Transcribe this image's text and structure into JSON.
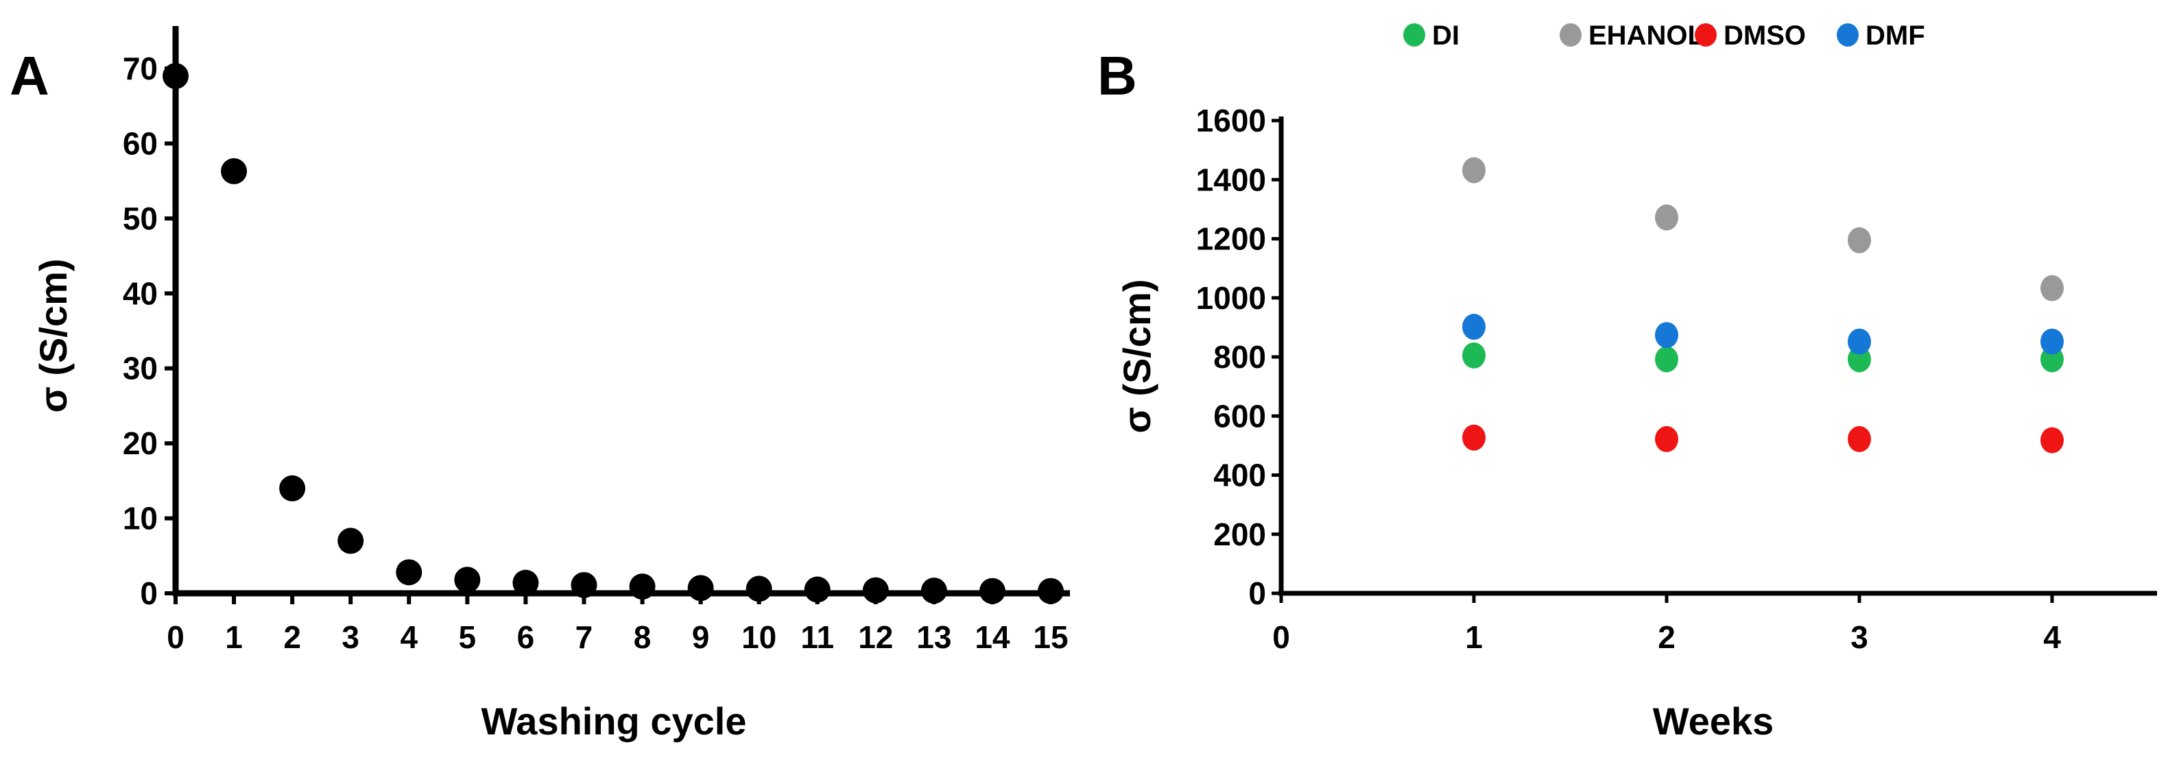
{
  "chart_data": [
    {
      "panel_label": "A",
      "type": "scatter",
      "xlabel": "Washing cycle",
      "ylabel": "σ (S/cm)",
      "xlim": [
        0,
        15
      ],
      "ylim": [
        0,
        70
      ],
      "xticks": [
        0,
        1,
        2,
        3,
        4,
        5,
        6,
        7,
        8,
        9,
        10,
        11,
        12,
        13,
        14,
        15
      ],
      "yticks": [
        0,
        10,
        20,
        30,
        40,
        50,
        60,
        70
      ],
      "grid": false,
      "series": [
        {
          "color": "#000000",
          "x": [
            0,
            1,
            2,
            3,
            4,
            5,
            6,
            7,
            8,
            9,
            10,
            11,
            12,
            13,
            14,
            15
          ],
          "y": [
            69,
            56.3,
            14,
            7,
            2.8,
            1.8,
            1.4,
            1.1,
            0.9,
            0.7,
            0.6,
            0.5,
            0.4,
            0.35,
            0.3,
            0.3
          ]
        }
      ]
    },
    {
      "panel_label": "B",
      "type": "scatter",
      "xlabel": "Weeks",
      "ylabel": "σ (S/cm)",
      "xlim": [
        0,
        5
      ],
      "ylim": [
        0,
        1600
      ],
      "xticks": [
        0,
        1,
        2,
        3,
        4
      ],
      "yticks": [
        0,
        200,
        400,
        600,
        800,
        1000,
        1200,
        1400,
        1600
      ],
      "grid": false,
      "legend_position": "top",
      "categories": [
        1,
        2,
        3,
        4
      ],
      "series": [
        {
          "name": "DI",
          "color": "#1db954",
          "values": [
            805,
            792,
            792,
            792
          ]
        },
        {
          "name": "EHANOL",
          "color": "#999999",
          "values": [
            1432,
            1272,
            1195,
            1033
          ]
        },
        {
          "name": "DMSO",
          "color": "#f01515",
          "values": [
            527,
            522,
            522,
            518
          ]
        },
        {
          "name": "DMF",
          "color": "#1577d6",
          "values": [
            902,
            874,
            852,
            852
          ]
        }
      ]
    }
  ]
}
